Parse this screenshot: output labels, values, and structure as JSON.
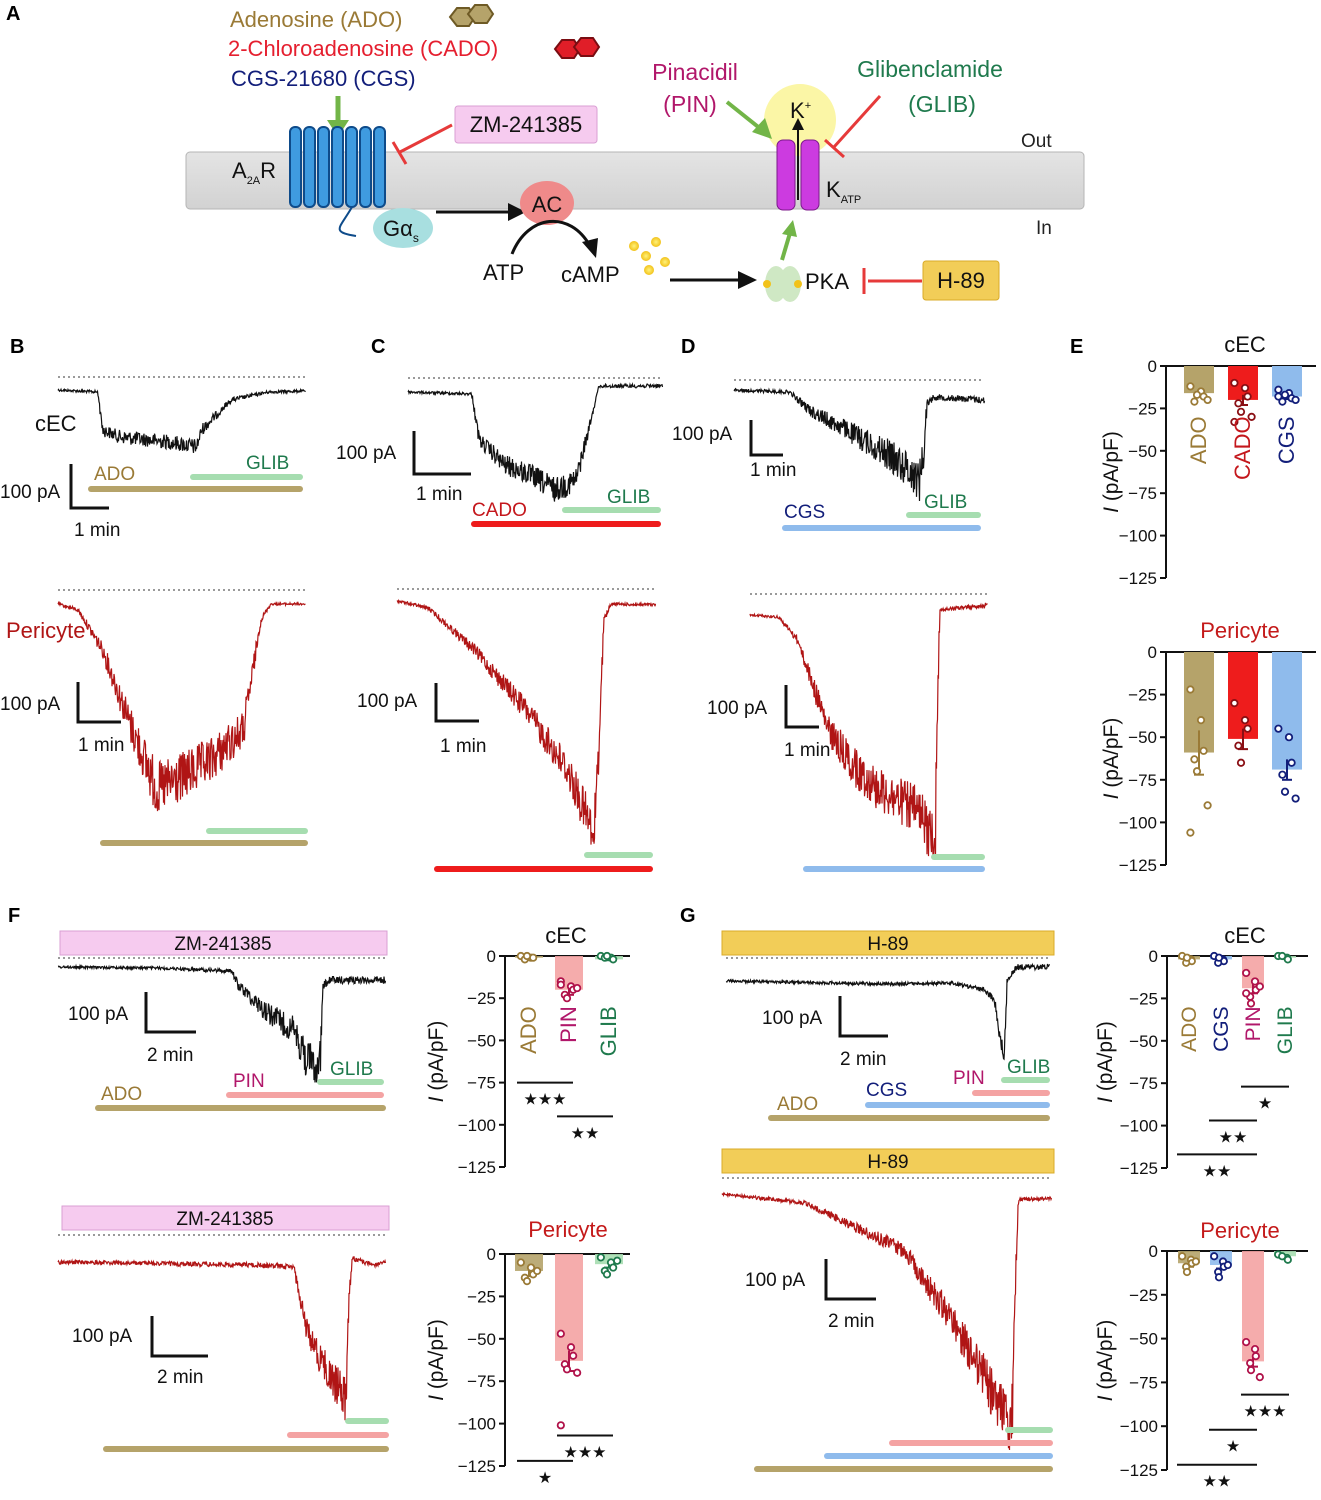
{
  "panel_letters": {
    "A": "A",
    "B": "B",
    "C": "C",
    "D": "D",
    "E": "E",
    "F": "F",
    "G": "G"
  },
  "schematic": {
    "ado": "Adenosine (ADO)",
    "cado": "2-Chloroadenosine (CADO)",
    "cgs": "CGS-21680 (CGS)",
    "zm": "ZM-241385",
    "receptor_main": "A",
    "receptor_sub": "2A",
    "receptor_tail": "R",
    "galpha": "Gα",
    "galpha_sub": "s",
    "ac": "AC",
    "atp": "ATP",
    "camp": "cAMP",
    "pka": "PKA",
    "h89": "H-89",
    "pin1": "Pinacidil",
    "pin2": "(PIN)",
    "glib1": "Glibenclamide",
    "glib2": "(GLIB)",
    "k": "K",
    "k_sup": "+",
    "katp_main": "K",
    "katp_sub": "ATP",
    "out": "Out",
    "in": "In"
  },
  "labels": {
    "cec": "cEC",
    "pericyte": "Pericyte",
    "ado": "ADO",
    "cado": "CADO",
    "cgs": "CGS",
    "glib": "GLIB",
    "pin": "PIN",
    "zm": "ZM-241385",
    "h89": "H-89",
    "s100pa": "100 pA",
    "s1min": "1 min",
    "s2min": "2 min",
    "ylabel_i": "I",
    "ylabel_rest": " (pA/pF)"
  },
  "colors": {
    "ado": "#b5a36a",
    "cado": "#ee1c1c",
    "cgs": "#8fbbec",
    "glib": "#a6ddb0",
    "pin": "#f4a3a3",
    "zm": "#f6cbef",
    "h89": "#f2cd58",
    "cec_trace": "#111111",
    "pericyte_trace": "#b01515",
    "ado_text": "#9a7a36",
    "cado_text": "#c4171c",
    "cgs_text": "#121e7a",
    "pin_text": "#b1176a",
    "glib_text": "#1f7a4d"
  },
  "chart_data": [
    {
      "id": "E-cEC",
      "type": "bar",
      "title": "cEC",
      "ylabel": "I (pA/pF)",
      "ylim": [
        -125,
        0
      ],
      "yticks": [
        0,
        -25,
        -50,
        -75,
        -100,
        -125
      ],
      "categories": [
        "ADO",
        "CADO",
        "CGS"
      ],
      "values": [
        -16,
        -20,
        -18
      ],
      "errors": [
        2,
        3,
        1.5
      ],
      "points": [
        [
          -12,
          -15,
          -18,
          -21,
          -17,
          -20
        ],
        [
          -10,
          -13,
          -18,
          -22,
          -27,
          -30,
          -33
        ],
        [
          -14,
          -16,
          -19,
          -21,
          -17,
          -20,
          -18
        ]
      ]
    },
    {
      "id": "E-Pericyte",
      "type": "bar",
      "title": "Pericyte",
      "ylabel": "I (pA/pF)",
      "ylim": [
        -125,
        0
      ],
      "yticks": [
        0,
        -25,
        -50,
        -75,
        -100,
        -125
      ],
      "categories": [
        "ADO",
        "CADO",
        "CGS"
      ],
      "values": [
        -59,
        -51,
        -69
      ],
      "errors": [
        13,
        6,
        6
      ],
      "points": [
        [
          -22,
          -40,
          -58,
          -63,
          -70,
          -90,
          -106
        ],
        [
          -30,
          -40,
          -45,
          -55,
          -65
        ],
        [
          -45,
          -50,
          -65,
          -72,
          -82,
          -86
        ]
      ]
    },
    {
      "id": "F-cEC",
      "type": "bar",
      "title": "cEC",
      "ylabel": "I (pA/pF)",
      "ylim": [
        -125,
        0
      ],
      "yticks": [
        0,
        -25,
        -50,
        -75,
        -100,
        -125
      ],
      "categories": [
        "ADO",
        "PIN",
        "GLIB"
      ],
      "values": [
        -1,
        -20,
        -2
      ],
      "errors": [
        0.5,
        3,
        0.5
      ],
      "points": [
        [
          0,
          -1,
          -1,
          -2,
          0
        ],
        [
          -15,
          -18,
          -20,
          -23,
          -25,
          -19,
          -17
        ],
        [
          0,
          -1,
          -2,
          -1,
          0
        ]
      ],
      "significance": [
        {
          "from": "ADO",
          "to": "PIN",
          "stars": "★★★",
          "y": -75
        },
        {
          "from": "PIN",
          "to": "GLIB",
          "stars": "★★",
          "y": -95
        }
      ]
    },
    {
      "id": "F-Pericyte",
      "type": "bar",
      "title": "Pericyte",
      "ylabel": "I (pA/pF)",
      "ylim": [
        -125,
        0
      ],
      "yticks": [
        0,
        -25,
        -50,
        -75,
        -100,
        -125
      ],
      "categories": [
        "ADO",
        "PIN",
        "GLIB"
      ],
      "values": [
        -10,
        -63,
        -6
      ],
      "errors": [
        3,
        6,
        2
      ],
      "points": [
        [
          -5,
          -8,
          -12,
          -14,
          -16,
          -10
        ],
        [
          -47,
          -55,
          -60,
          -65,
          -68,
          -70,
          -101
        ],
        [
          -2,
          -5,
          -8,
          -10,
          -12,
          -4
        ]
      ],
      "significance": [
        {
          "from": "ADO",
          "to": "PIN",
          "stars": "★",
          "y": -122
        },
        {
          "from": "PIN",
          "to": "GLIB",
          "stars": "★★★",
          "y": -107
        }
      ]
    },
    {
      "id": "G-cEC",
      "type": "bar",
      "title": "cEC",
      "ylabel": "I (pA/pF)",
      "ylim": [
        -125,
        0
      ],
      "yticks": [
        0,
        -25,
        -50,
        -75,
        -100,
        -125
      ],
      "categories": [
        "ADO",
        "CGS",
        "PIN",
        "GLIB"
      ],
      "values": [
        -2,
        -2,
        -19,
        -1
      ],
      "errors": [
        0.5,
        0.5,
        3,
        0.5
      ],
      "points": [
        [
          0,
          -2,
          -3,
          -4,
          -1
        ],
        [
          0,
          -2,
          -3,
          -4,
          -1
        ],
        [
          -10,
          -15,
          -20,
          -24,
          -28,
          -18,
          -22
        ],
        [
          0,
          -1,
          -2,
          0
        ]
      ],
      "significance": [
        {
          "from": "PIN",
          "to": "GLIB",
          "stars": "★",
          "y": -77
        },
        {
          "from": "CGS",
          "to": "PIN",
          "stars": "★★",
          "y": -97
        },
        {
          "from": "ADO",
          "to": "PIN",
          "stars": "★★",
          "y": -117
        }
      ]
    },
    {
      "id": "G-Pericyte",
      "type": "bar",
      "title": "Pericyte",
      "ylabel": "I (pA/pF)",
      "ylim": [
        -125,
        0
      ],
      "yticks": [
        0,
        -25,
        -50,
        -75,
        -100,
        -125
      ],
      "categories": [
        "ADO",
        "CGS",
        "PIN",
        "GLIB"
      ],
      "values": [
        -7,
        -8,
        -63,
        -3
      ],
      "errors": [
        2,
        2,
        3,
        1
      ],
      "points": [
        [
          -3,
          -5,
          -7,
          -9,
          -12,
          -6
        ],
        [
          -3,
          -6,
          -9,
          -12,
          -15,
          -8
        ],
        [
          -52,
          -56,
          -60,
          -64,
          -68,
          -72
        ],
        [
          -2,
          -4,
          -5,
          -3
        ]
      ],
      "significance": [
        {
          "from": "PIN",
          "to": "GLIB",
          "stars": "★★★",
          "y": -82
        },
        {
          "from": "CGS",
          "to": "PIN",
          "stars": "★",
          "y": -102
        },
        {
          "from": "ADO",
          "to": "PIN",
          "stars": "★★",
          "y": -122
        }
      ]
    }
  ]
}
